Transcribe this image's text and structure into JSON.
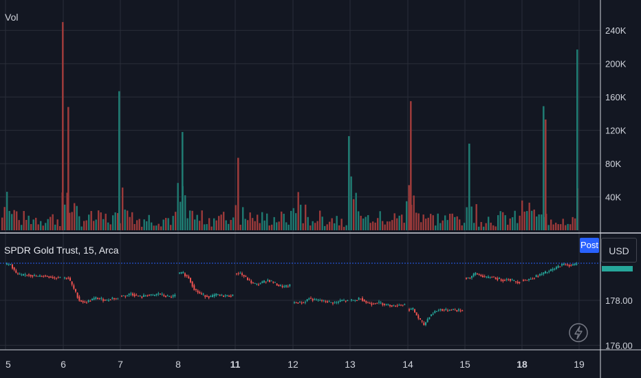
{
  "volume_pane": {
    "label": "Vol"
  },
  "price_pane": {
    "title": "SPDR Gold Trust, 15, Arca",
    "post_badge": "Post",
    "currency": "USD"
  },
  "colors": {
    "up": "#26a69a",
    "down": "#ef5350",
    "up_vol": "#1f7a71",
    "down_vol": "#9b3a3a",
    "grid": "#2a2e39",
    "axis_text": "#d1d4dc",
    "last_price_line": "#2962ff"
  },
  "icons": [
    "bolt-icon"
  ],
  "chart_data": [
    {
      "type": "bar",
      "title": "Vol",
      "y_ticks": [
        "40K",
        "80K",
        "120K",
        "160K",
        "200K",
        "240K"
      ],
      "ylim": [
        0,
        260000
      ],
      "spikes": [
        {
          "x_label": "6",
          "value": 250000,
          "direction": "down"
        },
        {
          "x_label": "6",
          "value": 148000,
          "direction": "down"
        },
        {
          "x_label": "7",
          "value": 167000,
          "direction": "up"
        },
        {
          "x_label": "8",
          "value": 118000,
          "direction": "up"
        },
        {
          "x_label": "11",
          "value": 87000,
          "direction": "down"
        },
        {
          "x_label": "13",
          "value": 113000,
          "direction": "up"
        },
        {
          "x_label": "14",
          "value": 155000,
          "direction": "down"
        },
        {
          "x_label": "15",
          "value": 104000,
          "direction": "up"
        },
        {
          "x_label": "18",
          "value": 149000,
          "direction": "up"
        },
        {
          "x_label": "18",
          "value": 133000,
          "direction": "down"
        },
        {
          "x_label": "19",
          "value": 217000,
          "direction": "up"
        }
      ]
    },
    {
      "type": "line",
      "title": "SPDR Gold Trust, 15, Arca",
      "y_ticks": [
        "178.00",
        "176.00"
      ],
      "ylim": [
        175.9,
        179.9
      ],
      "x_labels": [
        "5",
        "6",
        "7",
        "8",
        "11",
        "12",
        "13",
        "14",
        "15",
        "18",
        "19"
      ],
      "x_labels_bold": [
        "11",
        "18"
      ],
      "sessions": [
        {
          "day": "5",
          "values": [
            179.6,
            179.2,
            179.1,
            179.15,
            179.1,
            179.05,
            179.1,
            179.05,
            179.0,
            179.05
          ]
        },
        {
          "day": "6",
          "values": [
            179.0,
            178.5,
            178.0,
            177.9,
            178.0,
            178.1,
            178.05,
            178.0,
            178.1,
            178.05
          ]
        },
        {
          "day": "7",
          "values": [
            178.2,
            178.3,
            178.2,
            178.15,
            178.25,
            178.2,
            178.3,
            178.2,
            178.15,
            178.2
          ]
        },
        {
          "day": "8",
          "values": [
            179.2,
            179.0,
            178.5,
            178.3,
            178.2,
            178.15,
            178.25,
            178.2,
            178.2,
            178.2
          ]
        },
        {
          "day": "11",
          "values": [
            179.2,
            179.0,
            178.8,
            178.7,
            178.8,
            178.9,
            178.8,
            178.65,
            178.6,
            178.65
          ]
        },
        {
          "day": "12",
          "values": [
            177.9,
            177.9,
            178.1,
            178.0,
            178.0,
            177.95,
            177.9,
            177.9,
            178.0,
            177.95
          ]
        },
        {
          "day": "13",
          "values": [
            178.0,
            178.1,
            177.9,
            177.85,
            177.9,
            177.85,
            177.8,
            177.75,
            177.8,
            177.8
          ]
        },
        {
          "day": "14",
          "values": [
            177.6,
            177.2,
            176.9,
            177.3,
            177.5,
            177.6,
            177.55,
            177.6,
            177.55,
            177.55
          ]
        },
        {
          "day": "15",
          "values": [
            179.0,
            179.2,
            179.1,
            179.0,
            179.05,
            178.95,
            178.9,
            178.95,
            178.85,
            178.8
          ]
        },
        {
          "day": "18",
          "values": [
            178.9,
            179.0,
            179.1,
            179.2,
            179.3,
            179.4,
            179.55,
            179.6,
            179.55,
            179.6
          ]
        }
      ]
    }
  ]
}
